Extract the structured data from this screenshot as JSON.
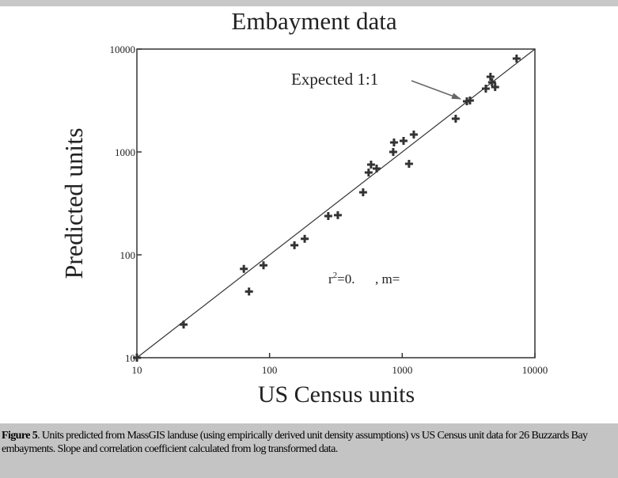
{
  "chart_data": {
    "type": "scatter",
    "title": "Embayment data",
    "xlabel": "US Census units",
    "ylabel": "Predicted units",
    "xscale": "log",
    "yscale": "log",
    "xlim": [
      10,
      10000
    ],
    "ylim": [
      10,
      10000
    ],
    "xticks": [
      10,
      100,
      1000,
      10000
    ],
    "yticks": [
      10,
      100,
      1000,
      10000
    ],
    "color": "#333333",
    "reference_line_label": "Expected 1:1",
    "stat_label": {
      "base": "r",
      "sup": "2",
      "rest": "=0.      , m="
    },
    "x": [
      10,
      22.5,
      64,
      70,
      90,
      154,
      184,
      277,
      327,
      507,
      558,
      582,
      641,
      855,
      867,
      1023,
      1125,
      1222,
      2529,
      3069,
      3240,
      4265,
      4624,
      4752,
      5014,
      7277
    ],
    "values": [
      10,
      21,
      73,
      44,
      79,
      124,
      143,
      238,
      243,
      405,
      631,
      754,
      689,
      1000,
      1236,
      1282,
      767,
      1476,
      2104,
      3105,
      3162,
      4121,
      5383,
      4753,
      4276,
      8091
    ]
  },
  "caption": {
    "label": "Figure 5",
    "text": ". Units predicted from MassGIS landuse (using empirically derived unit density assumptions) vs US Census unit data for 26 Buzzards Bay embayments.  Slope and correlation coefficient calculated from log transformed data."
  }
}
